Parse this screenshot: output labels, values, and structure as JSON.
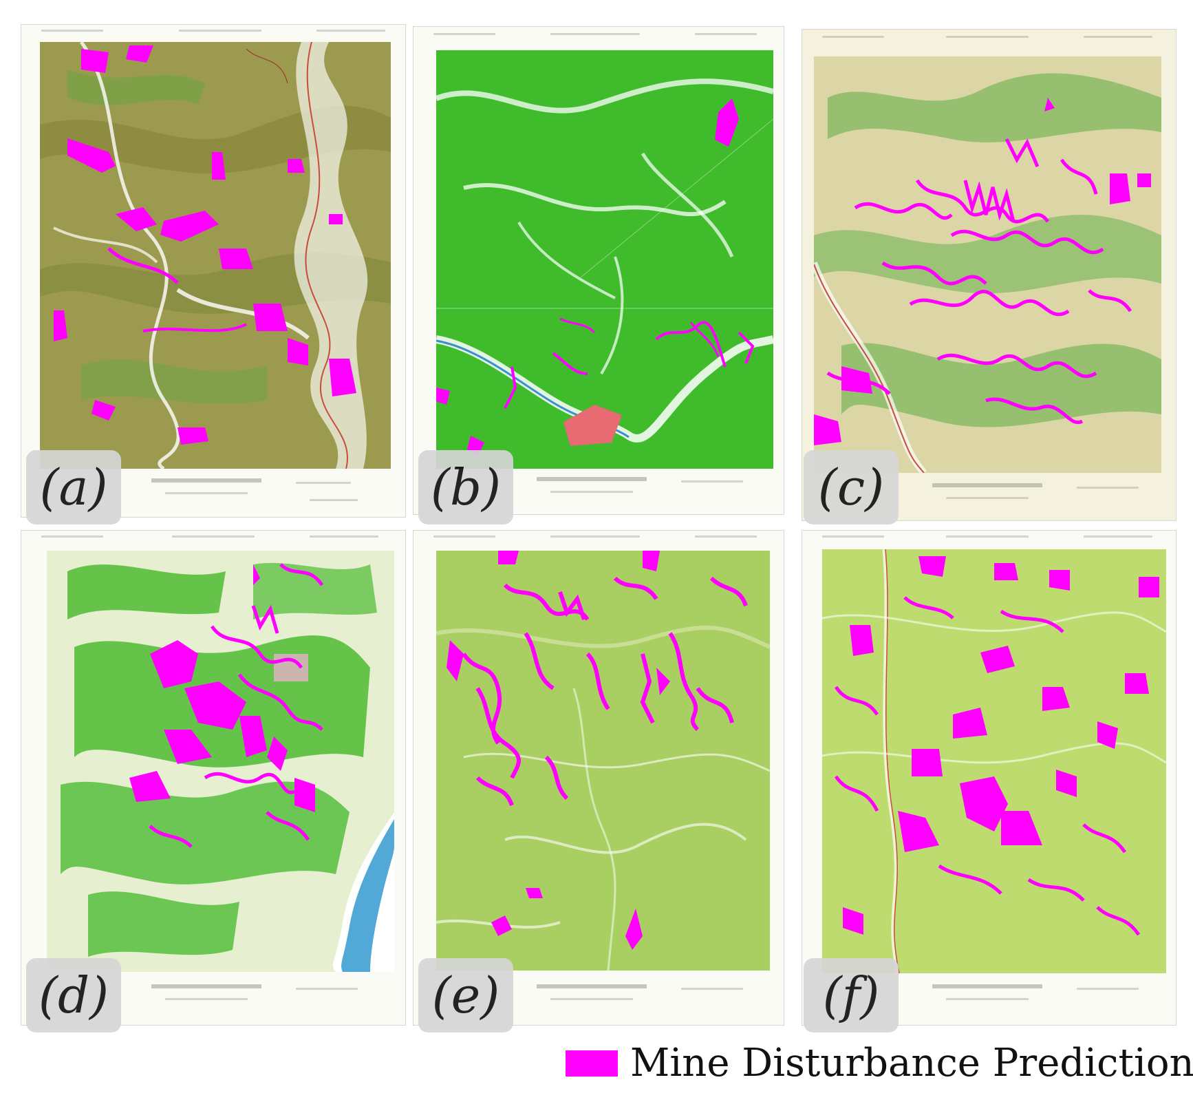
{
  "figure": {
    "panels": [
      {
        "id": "a",
        "label": "(a)",
        "base_color": "#9c9a4e",
        "accent_color": "#6ea545",
        "prediction_color": "#ff00ff"
      },
      {
        "id": "b",
        "label": "(b)",
        "base_color": "#3fbb2c",
        "accent_color": "#2f9e22",
        "prediction_color": "#ff00ff"
      },
      {
        "id": "c",
        "label": "(c)",
        "base_color": "#dcd6a6",
        "accent_color": "#5cae43",
        "prediction_color": "#ff00ff"
      },
      {
        "id": "d",
        "label": "(d)",
        "base_color": "#e6efcf",
        "accent_color": "#4dbb33",
        "prediction_color": "#ff00ff"
      },
      {
        "id": "e",
        "label": "(e)",
        "base_color": "#a9cf62",
        "accent_color": "#93c050",
        "prediction_color": "#ff00ff"
      },
      {
        "id": "f",
        "label": "(f)",
        "base_color": "#bedb6f",
        "accent_color": "#a2ca55",
        "prediction_color": "#ff00ff"
      }
    ],
    "legend": {
      "label": "Mine Disturbance Predictions",
      "color": "#ff00ff"
    }
  }
}
